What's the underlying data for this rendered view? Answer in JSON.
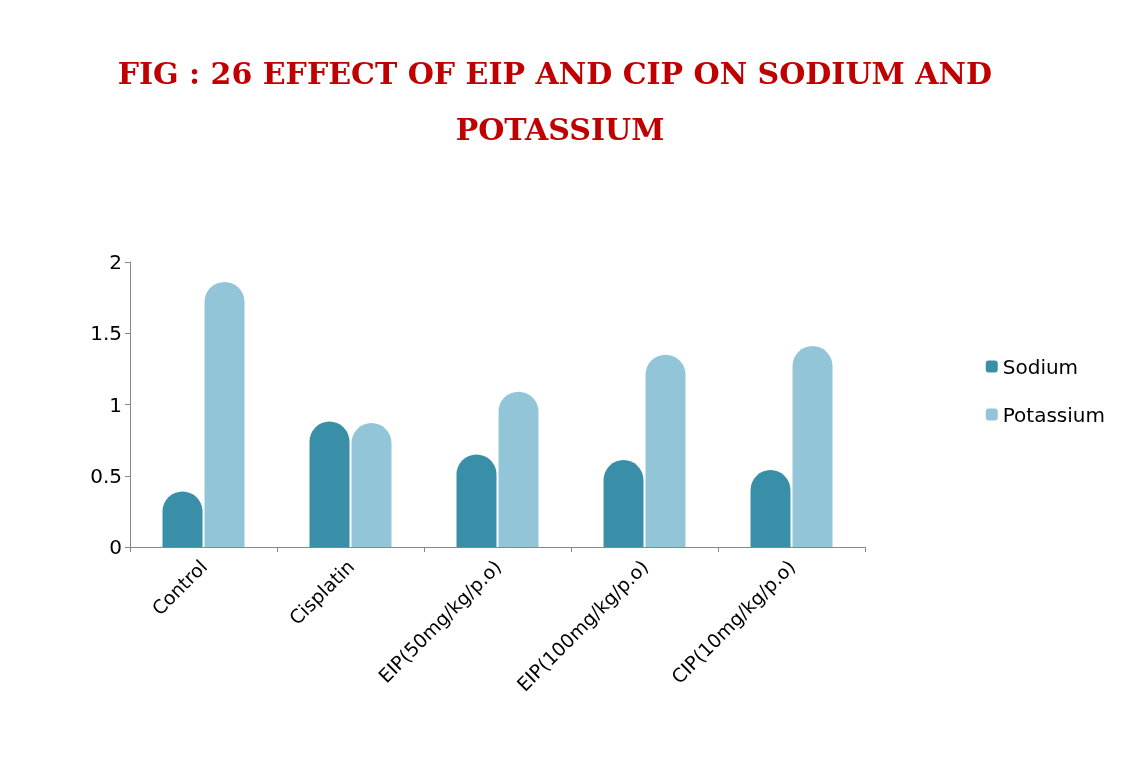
{
  "chart_data": {
    "type": "bar",
    "title": "FIG : 26 EFFECT OF EIP AND CIP ON SODIUM AND POTASSIUM",
    "categories": [
      "Control",
      "Cisplatin",
      "EIP(50mg/kg/p.o)",
      "EIP(100mg/kg/p.o)",
      "CIP(10mg/kg/p.o)"
    ],
    "series": [
      {
        "name": "Sodium",
        "color": "#3a8fa8",
        "values": [
          0.39,
          0.88,
          0.65,
          0.61,
          0.54
        ]
      },
      {
        "name": "Potassium",
        "color": "#93c5d8",
        "values": [
          1.86,
          0.87,
          1.09,
          1.35,
          1.41
        ]
      }
    ],
    "ylim": [
      0,
      2
    ],
    "yticks": [
      0,
      0.5,
      1,
      1.5,
      2
    ],
    "grid": false,
    "legend": "right"
  }
}
